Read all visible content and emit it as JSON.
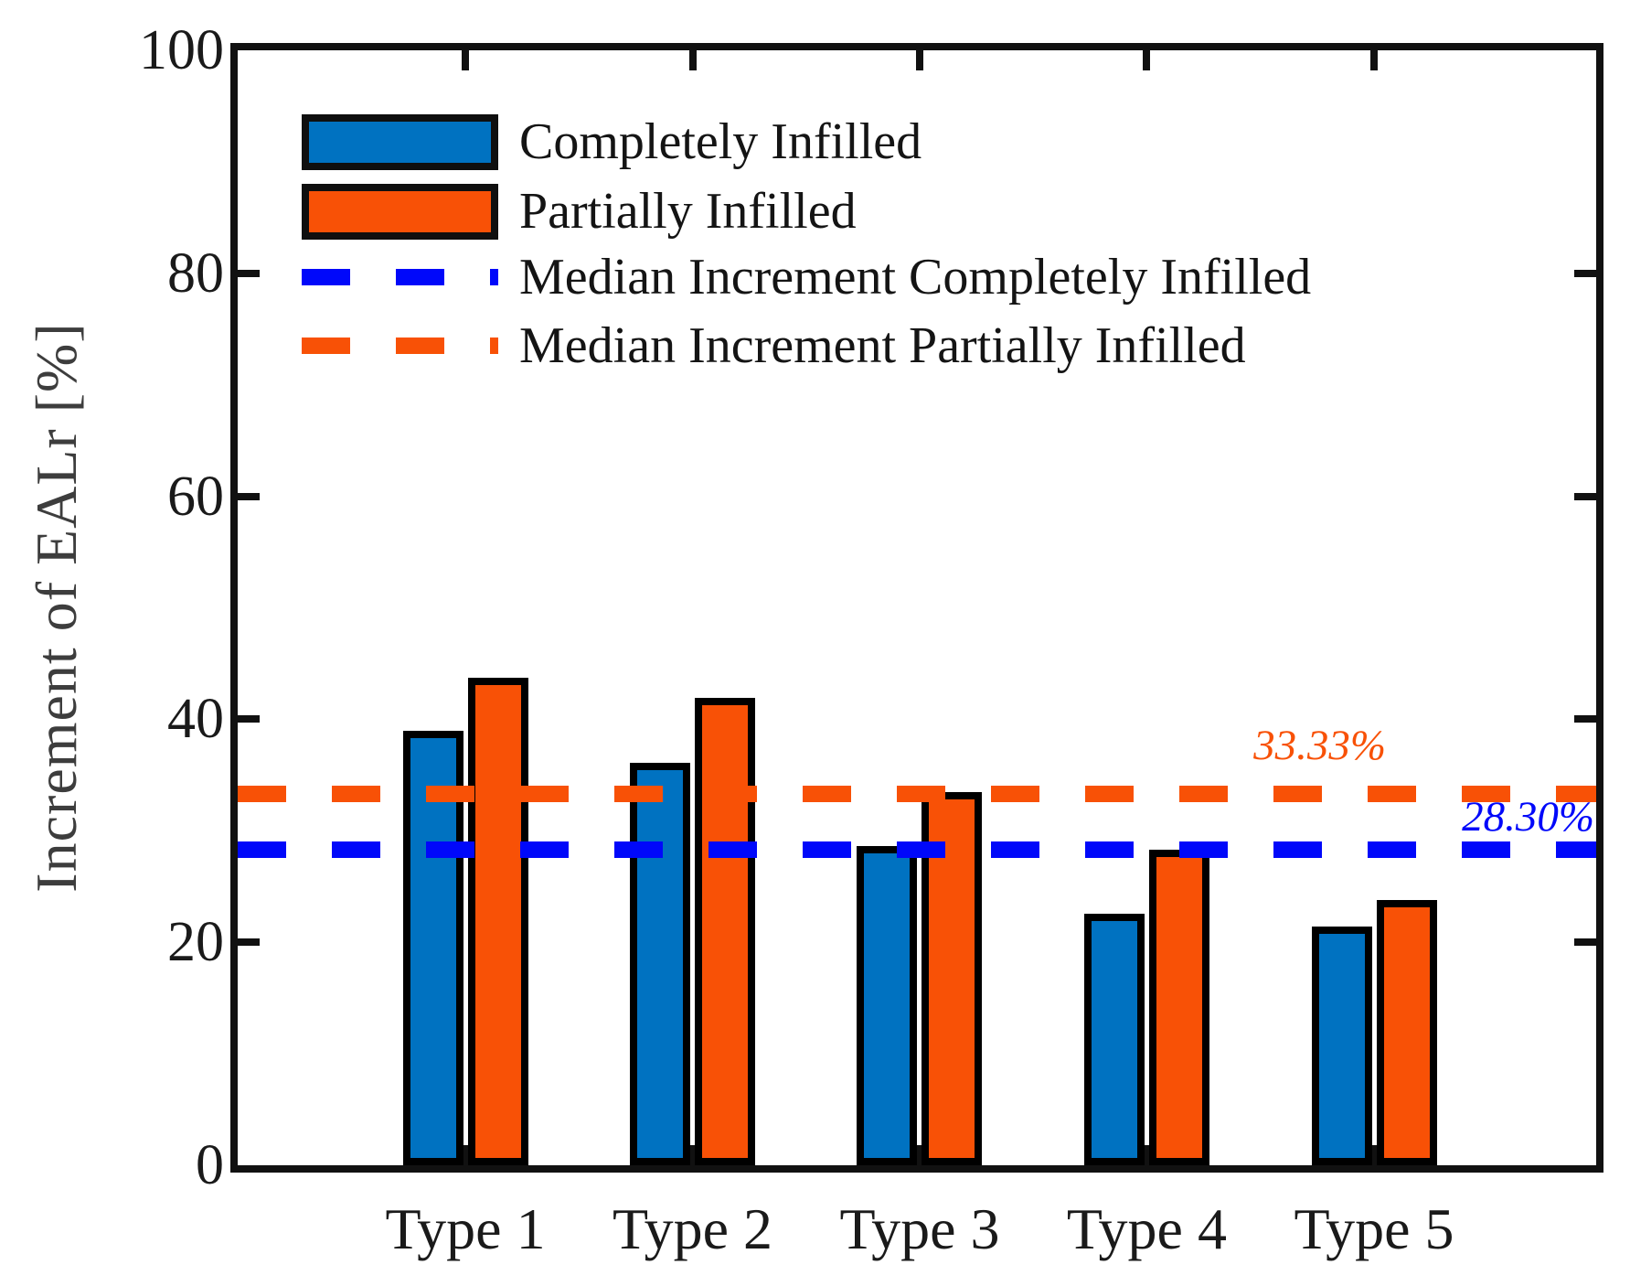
{
  "chart_data": {
    "type": "bar",
    "title": "",
    "categories": [
      "Type 1",
      "Type 2",
      "Type 3",
      "Type 4",
      "Type 5"
    ],
    "series": [
      {
        "name": "Completely Infilled",
        "color": "#0072C1",
        "values": [
          39.0,
          36.1,
          28.6,
          22.6,
          21.4
        ]
      },
      {
        "name": "Partially Infilled",
        "color": "#F85106",
        "values": [
          43.7,
          41.9,
          33.5,
          28.3,
          23.8
        ]
      }
    ],
    "median_lines": [
      {
        "name": "Median Increment Completely Infilled",
        "value": 28.3,
        "label": "28.30%",
        "color": "#0008FA",
        "style": "dashed"
      },
      {
        "name": "Median Increment Partially Infilled",
        "value": 33.33,
        "label": "33.33%",
        "color": "#F85106",
        "style": "dashed"
      }
    ],
    "xlabel": "",
    "ylabel": "Increment of EALr [%]",
    "ylim": [
      0,
      100
    ],
    "yticks": [
      0,
      20,
      40,
      60,
      80,
      100
    ],
    "grid": false,
    "legend_position": "top-left-inside",
    "bar_edge_color": "#000000"
  },
  "legend": {
    "items": [
      {
        "label": "Completely Infilled",
        "swatch": "patch",
        "color": "#0072C1"
      },
      {
        "label": "Partially Infilled",
        "swatch": "patch",
        "color": "#F85106"
      },
      {
        "label": "Median Increment Completely Infilled",
        "swatch": "dash",
        "color": "#0008FA"
      },
      {
        "label": "Median Increment Partially Infilled",
        "swatch": "dash",
        "color": "#F85106"
      }
    ]
  },
  "annotations": [
    {
      "text": "33.33%",
      "color": "#F85106"
    },
    {
      "text": "28.30%",
      "color": "#0008FA"
    }
  ]
}
